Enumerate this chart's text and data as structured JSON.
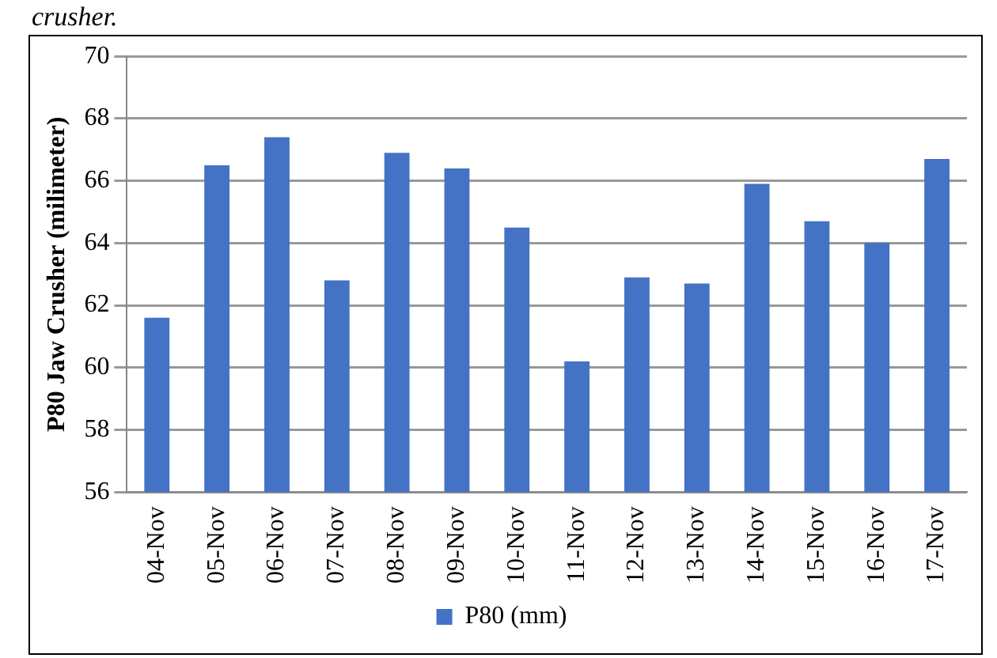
{
  "chart_data": {
    "type": "bar",
    "annotations": [
      "crusher."
    ],
    "ylabel": "P80 Jaw Crusher (milimeter)",
    "categories": [
      "04-Nov",
      "05-Nov",
      "06-Nov",
      "07-Nov",
      "08-Nov",
      "09-Nov",
      "10-Nov",
      "11-Nov",
      "12-Nov",
      "13-Nov",
      "14-Nov",
      "15-Nov",
      "16-Nov",
      "17-Nov"
    ],
    "series": [
      {
        "name": "P80 (mm)",
        "color": "#4472c4",
        "values": [
          61.6,
          66.5,
          67.4,
          62.8,
          66.9,
          66.4,
          64.5,
          60.2,
          62.9,
          62.7,
          65.9,
          64.7,
          64.0,
          66.7
        ]
      }
    ],
    "ylim": [
      56,
      70
    ],
    "yticks": [
      56,
      58,
      60,
      62,
      64,
      66,
      68,
      70
    ],
    "grid": "y",
    "legend": "bottom"
  }
}
